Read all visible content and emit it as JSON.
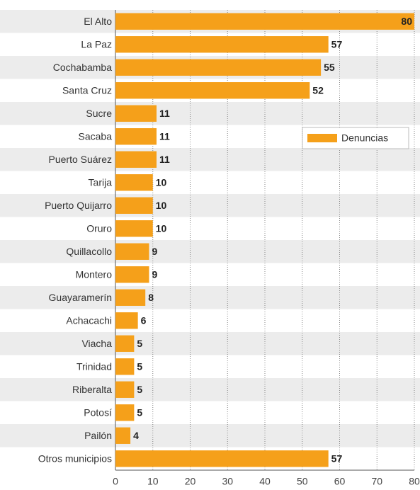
{
  "chart_data": {
    "type": "bar",
    "orientation": "horizontal",
    "categories": [
      "El Alto",
      "La Paz",
      "Cochabamba",
      "Santa Cruz",
      "Sucre",
      "Sacaba",
      "Puerto Suárez",
      "Tarija",
      "Puerto Quijarro",
      "Oruro",
      "Quillacollo",
      "Montero",
      "Guayaramerín",
      "Achacachi",
      "Viacha",
      "Trinidad",
      "Riberalta",
      "Potosí",
      "Pailón",
      "Otros municipios"
    ],
    "series": [
      {
        "name": "Denuncias",
        "color": "#f5a01a",
        "values": [
          80,
          57,
          55,
          52,
          11,
          11,
          11,
          10,
          10,
          10,
          9,
          9,
          8,
          6,
          5,
          5,
          5,
          5,
          4,
          57
        ]
      }
    ],
    "xlim": [
      0,
      80
    ],
    "xticks": [
      0,
      10,
      20,
      30,
      40,
      50,
      60,
      70,
      80
    ],
    "grid": true,
    "legend": "upper right"
  }
}
